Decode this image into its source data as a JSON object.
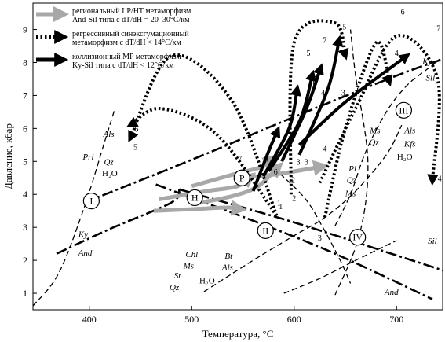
{
  "chart_data": {
    "type": "line",
    "xlabel": "Температура, °C",
    "ylabel": "Давление, кбар",
    "xlim": [
      345,
      745
    ],
    "ylim": [
      0.5,
      9.8
    ],
    "xticks": [
      400,
      500,
      600,
      700
    ],
    "yticks": [
      1,
      2,
      3,
      4,
      5,
      6,
      7,
      8,
      9
    ],
    "legend": [
      {
        "key": "lp_ht",
        "color": "#a8a8a8",
        "line1": "региональный LP/HT метаморфизм",
        "line2": "And-Sil типа с dT/dH = 20–30°C/км"
      },
      {
        "key": "retro",
        "color": "#000000",
        "line1": "регрессивный синэксгумационный",
        "line2": "метаморфизм с dT/dH < 14°C/км"
      },
      {
        "key": "coll",
        "color": "#000000",
        "line1": "коллизионный MP метаморфизм",
        "line2": "Ky-Sil типа с dT/dH < 12°C/км"
      }
    ],
    "reaction_curves": [
      {
        "name": "Ky-Sil",
        "style": "dashdot",
        "points": [
          [
            395,
            3.75
          ],
          [
            500,
            5.05
          ],
          [
            600,
            6.35
          ],
          [
            700,
            7.6
          ],
          [
            745,
            8.1
          ]
        ]
      },
      {
        "name": "And-Sil",
        "style": "dashdot",
        "points": [
          [
            488,
            4.15
          ],
          [
            600,
            3.15
          ],
          [
            700,
            2.15
          ],
          [
            745,
            1.7
          ]
        ]
      },
      {
        "name": "Ky-And",
        "style": "dashdot",
        "points": [
          [
            368,
            2.2
          ],
          [
            420,
            2.95
          ],
          [
            480,
            3.75
          ],
          [
            488,
            4.15
          ]
        ]
      },
      {
        "name": "And (lower)",
        "style": "dashdot",
        "points": [
          [
            465,
            4.3
          ],
          [
            560,
            3.2
          ],
          [
            640,
            2.2
          ],
          [
            735,
            0.82
          ]
        ]
      },
      {
        "name": "I",
        "style": "dashed",
        "points": [
          [
            345,
            0.62
          ],
          [
            370,
            1.6
          ],
          [
            395,
            3.6
          ],
          [
            415,
            5.6
          ],
          [
            425,
            6.6
          ]
        ]
      },
      {
        "name": "II",
        "style": "dashed",
        "points": [
          [
            512,
            1.05
          ],
          [
            560,
            2.0
          ],
          [
            600,
            2.75
          ],
          [
            630,
            3.3
          ],
          [
            660,
            4.1
          ],
          [
            690,
            5.2
          ],
          [
            705,
            6.1
          ]
        ]
      },
      {
        "name": "III",
        "style": "dashed",
        "points": [
          [
            640,
            3.05
          ],
          [
            655,
            4.0
          ],
          [
            670,
            5.3
          ],
          [
            690,
            6.5
          ],
          [
            710,
            7.3
          ],
          [
            730,
            7.8
          ],
          [
            742,
            8.1
          ]
        ]
      },
      {
        "name": "IV",
        "style": "dashed",
        "points": [
          [
            640,
            0.95
          ],
          [
            664,
            2.8
          ],
          [
            672,
            5.0
          ],
          [
            660,
            7.6
          ],
          [
            655,
            9.0
          ]
        ]
      },
      {
        "name": "Ms-Qz",
        "style": "dashed",
        "points": [
          [
            580,
            4.8
          ],
          [
            610,
            3.9
          ],
          [
            628,
            3.0
          ],
          [
            645,
            2.0
          ],
          [
            655,
            1.3
          ]
        ]
      },
      {
        "name": "Chl",
        "style": "dashed",
        "points": [
          [
            590,
            1.0
          ],
          [
            625,
            1.45
          ],
          [
            660,
            2.0
          ],
          [
            700,
            2.6
          ]
        ]
      }
    ],
    "lp_ht_paths": [
      {
        "points": [
          [
            463,
            3.5
          ],
          [
            500,
            3.55
          ],
          [
            535,
            3.6
          ],
          [
            548,
            3.55
          ]
        ]
      },
      {
        "points": [
          [
            468,
            3.85
          ],
          [
            515,
            4.1
          ],
          [
            545,
            4.25
          ],
          [
            558,
            4.55
          ]
        ]
      },
      {
        "points": [
          [
            500,
            3.7
          ],
          [
            540,
            3.95
          ],
          [
            565,
            4.25
          ],
          [
            585,
            4.85
          ]
        ]
      },
      {
        "points": [
          [
            500,
            4.25
          ],
          [
            540,
            4.6
          ],
          [
            570,
            4.85
          ],
          [
            580,
            5.1
          ]
        ]
      },
      {
        "points": [
          [
            550,
            4.5
          ],
          [
            580,
            4.6
          ],
          [
            610,
            4.75
          ],
          [
            628,
            4.85
          ]
        ]
      }
    ],
    "retro_paths": [
      {
        "points": [
          [
            583,
            3.35
          ],
          [
            525,
            5.8
          ],
          [
            470,
            6.6
          ],
          [
            440,
            6.1
          ]
        ]
      },
      {
        "points": [
          [
            583,
            3.35
          ],
          [
            540,
            6.8
          ],
          [
            480,
            8.2
          ],
          [
            440,
            5.7
          ]
        ]
      },
      {
        "points": [
          [
            597,
            4.0
          ],
          [
            600,
            8.6
          ],
          [
            640,
            9.2
          ],
          [
            650,
            8.2
          ]
        ]
      },
      {
        "points": [
          [
            630,
            3.3
          ],
          [
            650,
            6.0
          ],
          [
            680,
            8.6
          ],
          [
            693,
            7.4
          ]
        ]
      },
      {
        "points": [
          [
            625,
            4.35
          ],
          [
            660,
            6.6
          ],
          [
            700,
            8.8
          ],
          [
            740,
            7.5
          ],
          [
            735,
            4.4
          ]
        ]
      }
    ],
    "coll_paths": [
      {
        "points": [
          [
            560,
            4.1
          ],
          [
            575,
            5.3
          ],
          [
            584,
            5.95
          ]
        ]
      },
      {
        "points": [
          [
            570,
            4.55
          ],
          [
            595,
            6.0
          ],
          [
            603,
            7.2
          ]
        ]
      },
      {
        "points": [
          [
            575,
            4.7
          ],
          [
            605,
            6.2
          ],
          [
            618,
            7.65
          ]
        ]
      },
      {
        "points": [
          [
            588,
            5.0
          ],
          [
            612,
            6.6
          ],
          [
            626,
            7.85
          ]
        ]
      },
      {
        "points": [
          [
            605,
            5.2
          ],
          [
            633,
            7.2
          ],
          [
            644,
            8.7
          ]
        ]
      },
      {
        "points": [
          [
            605,
            5.5
          ],
          [
            650,
            6.8
          ],
          [
            710,
            8.2
          ]
        ]
      }
    ],
    "stage_numbers": [
      {
        "t": "1",
        "x": 585,
        "y": 3.65
      },
      {
        "t": "2",
        "x": 599,
        "y": 4.35
      },
      {
        "t": "3",
        "x": 612,
        "y": 4.9
      },
      {
        "t": "4",
        "x": 628,
        "y": 7.0
      },
      {
        "t": "5",
        "x": 649,
        "y": 9.0
      },
      {
        "t": "6",
        "x": 706,
        "y": 9.45
      },
      {
        "t": "7",
        "x": 741,
        "y": 8.95
      }
    ],
    "circle_markers": [
      {
        "t": "I",
        "x": 402,
        "y": 3.8
      },
      {
        "t": "II",
        "x": 572,
        "y": 2.9
      },
      {
        "t": "III",
        "x": 707,
        "y": 6.55
      },
      {
        "t": "IV",
        "x": 662,
        "y": 2.7
      },
      {
        "t": "H",
        "x": 503,
        "y": 3.9
      },
      {
        "t": "P",
        "x": 549,
        "y": 4.5
      }
    ],
    "path_labels": [
      {
        "t": "1",
        "x": 587,
        "y": 3.55
      },
      {
        "t": "2",
        "x": 600,
        "y": 3.8
      },
      {
        "t": "3",
        "x": 604,
        "y": 4.9
      },
      {
        "t": "4",
        "x": 630,
        "y": 5.3
      },
      {
        "t": "5",
        "x": 573,
        "y": 5.0
      },
      {
        "t": "6",
        "x": 582,
        "y": 4.6
      },
      {
        "t": "7",
        "x": 547,
        "y": 5.0
      },
      {
        "t": "6",
        "x": 620,
        "y": 7.3
      },
      {
        "t": "3",
        "x": 622,
        "y": 7.55
      },
      {
        "t": "5",
        "x": 614,
        "y": 8.2
      },
      {
        "t": "7",
        "x": 630,
        "y": 8.6
      },
      {
        "t": "4",
        "x": 700,
        "y": 8.2
      },
      {
        "t": "3",
        "x": 648,
        "y": 7.0
      },
      {
        "t": "6",
        "x": 446,
        "y": 5.9
      },
      {
        "t": "5",
        "x": 445,
        "y": 5.35
      },
      {
        "t": "3",
        "x": 625,
        "y": 2.6
      },
      {
        "t": "4",
        "x": 742,
        "y": 4.4
      }
    ],
    "mineral_labels": [
      {
        "t": "Als",
        "x": 419,
        "y": 5.75,
        "it": true
      },
      {
        "t": "Prl",
        "x": 399,
        "y": 5.05,
        "it": true
      },
      {
        "t": "Qz",
        "x": 419,
        "y": 4.9,
        "it": true
      },
      {
        "t": "H₂O",
        "x": 420,
        "y": 4.55,
        "it": false
      },
      {
        "t": "Ky",
        "x": 394,
        "y": 2.7,
        "it": true
      },
      {
        "t": "And",
        "x": 396,
        "y": 2.15,
        "it": true
      },
      {
        "t": "Chl",
        "x": 500,
        "y": 2.1,
        "it": true
      },
      {
        "t": "Ms",
        "x": 497,
        "y": 1.75,
        "it": true
      },
      {
        "t": "St",
        "x": 486,
        "y": 1.45,
        "it": true
      },
      {
        "t": "Qz",
        "x": 483,
        "y": 1.1,
        "it": true
      },
      {
        "t": "Bt",
        "x": 536,
        "y": 2.05,
        "it": true
      },
      {
        "t": "Als",
        "x": 535,
        "y": 1.7,
        "it": true
      },
      {
        "t": "H₂O",
        "x": 515,
        "y": 1.3,
        "it": false
      },
      {
        "t": "Pl",
        "x": 657,
        "y": 4.7,
        "it": true
      },
      {
        "t": "Qz",
        "x": 656,
        "y": 4.35,
        "it": true
      },
      {
        "t": "Ms",
        "x": 655,
        "y": 3.95,
        "it": true
      },
      {
        "t": "Ms",
        "x": 679,
        "y": 5.85,
        "it": true
      },
      {
        "t": "Als",
        "x": 713,
        "y": 5.85,
        "it": true
      },
      {
        "t": "Qz",
        "x": 678,
        "y": 5.5,
        "it": true
      },
      {
        "t": "Kfs",
        "x": 713,
        "y": 5.45,
        "it": true
      },
      {
        "t": "H₂O",
        "x": 708,
        "y": 5.05,
        "it": false
      },
      {
        "t": "Ky",
        "x": 730,
        "y": 7.95,
        "it": true
      },
      {
        "t": "Sil",
        "x": 733,
        "y": 7.45,
        "it": true
      },
      {
        "t": "Sil",
        "x": 735,
        "y": 2.5,
        "it": true
      },
      {
        "t": "And",
        "x": 695,
        "y": 0.95,
        "it": true
      }
    ]
  }
}
